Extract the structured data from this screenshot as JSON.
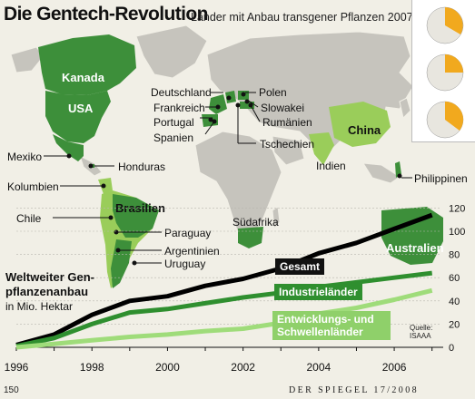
{
  "header": {
    "title": "Die Gentech-Revolution",
    "subtitle": "Länder mit Anbau transgener Pflanzen 2007"
  },
  "map": {
    "countries_highlighted": [
      "Kanada",
      "USA",
      "Mexiko",
      "Honduras",
      "Kolumbien",
      "Brasilien",
      "Chile",
      "Paraguay",
      "Argentinien",
      "Uruguay",
      "Deutschland",
      "Frankreich",
      "Portugal",
      "Spanien",
      "Polen",
      "Slowakei",
      "Rumänien",
      "Tschechien",
      "China",
      "Indien",
      "Philippinen",
      "Südafrika",
      "Australien"
    ],
    "label_colors": {
      "highlight": "#3d8f3a",
      "light_highlight": "#9acd5a",
      "land": "#c9c7c0",
      "sea": "#f1efe6"
    }
  },
  "labels": {
    "kanada": "Kanada",
    "usa": "USA",
    "mexiko": "Mexiko",
    "honduras": "Honduras",
    "kolumbien": "Kolumbien",
    "brasilien": "Brasilien",
    "chile": "Chile",
    "paraguay": "Paraguay",
    "argentinien": "Argentinien",
    "uruguay": "Uruguay",
    "deutschland": "Deutschland",
    "frankreich": "Frankreich",
    "portugal": "Portugal",
    "spanien": "Spanien",
    "polen": "Polen",
    "slowakei": "Slowakei",
    "rumaenien": "Rumänien",
    "tschechien": "Tschechien",
    "china": "China",
    "indien": "Indien",
    "philippinen": "Philippinen",
    "suedafrika": "Südafrika",
    "australien": "Australien"
  },
  "chart_title": {
    "line1": "Weltweiter Gen-",
    "line2": "pflanzenanbau",
    "unit": "in Mio. Hektar"
  },
  "source": {
    "line1": "Quelle:",
    "line2": "ISAAA"
  },
  "footer": {
    "page": "150",
    "magazine": "DER SPIEGEL 17/2008"
  },
  "chart_data": {
    "type": "line",
    "x": [
      1996,
      1997,
      1998,
      1999,
      2000,
      2001,
      2002,
      2003,
      2004,
      2005,
      2006,
      2007
    ],
    "xticks": [
      "1996",
      "1998",
      "2000",
      "2002",
      "2004",
      "2006"
    ],
    "yticks": [
      "0",
      "20",
      "40",
      "60",
      "80",
      "100",
      "120"
    ],
    "ylim": [
      0,
      125
    ],
    "series": [
      {
        "name": "Gesamt",
        "color": "#000000",
        "values": [
          2,
          11,
          28,
          40,
          44,
          53,
          59,
          68,
          81,
          90,
          102,
          114
        ]
      },
      {
        "name": "Industrieländer",
        "color": "#2f8f2f",
        "values": [
          1,
          8,
          20,
          30,
          33,
          38,
          43,
          47,
          52,
          56,
          60,
          64
        ]
      },
      {
        "name": "Entwicklungs- und Schwellenländer",
        "color": "#9fdc7a",
        "values": [
          0,
          3,
          6,
          9,
          11,
          14,
          16,
          21,
          29,
          34,
          41,
          49
        ]
      }
    ]
  }
}
